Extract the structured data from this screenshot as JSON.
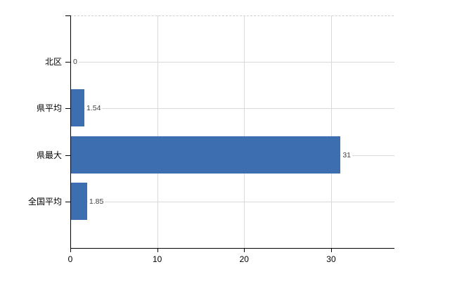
{
  "chart_data": {
    "type": "bar",
    "orientation": "horizontal",
    "title": "",
    "xlabel": "",
    "ylabel": "",
    "categories": [
      "北区",
      "県平均",
      "県最大",
      "全国平均"
    ],
    "values": [
      0,
      1.54,
      31,
      1.85
    ],
    "value_labels": [
      "0",
      "1.54",
      "31",
      "1.85"
    ],
    "x_ticks": [
      0,
      10,
      20,
      30
    ],
    "x_tick_labels": [
      "0",
      "10",
      "20",
      "30"
    ],
    "xlim": [
      0,
      37.2
    ],
    "grid": true,
    "legend_position": "none",
    "bar_color": "#3d6eb0",
    "grid_color": "#d9d9d9",
    "axis_color": "#000000",
    "label_color": "#000000",
    "value_label_color": "#404040"
  }
}
